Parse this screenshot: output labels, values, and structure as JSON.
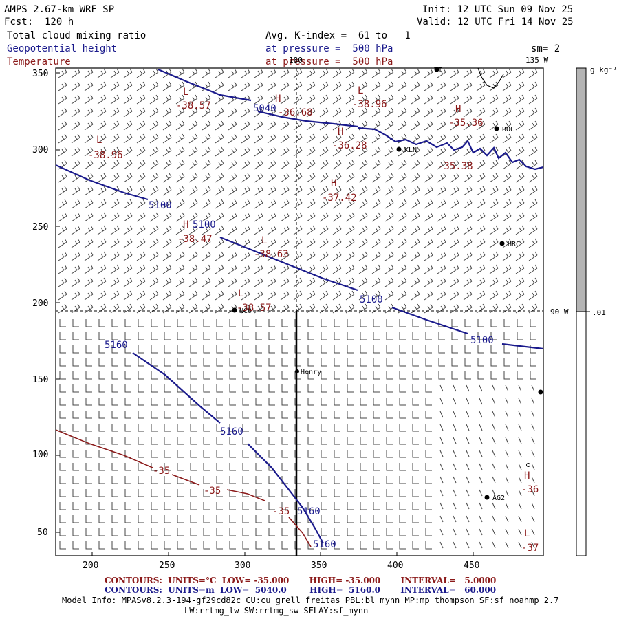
{
  "header": {
    "model": "AMPS 2.67-km WRF SP",
    "forecast": "Fcst:  120 h",
    "init": "Init: 12 UTC Sun 09 Nov 25",
    "valid": "Valid: 12 UTC Fri 14 Nov 25",
    "field1": "Total cloud mixing ratio",
    "field2": "Geopotential height",
    "field3": "Temperature",
    "avg": "Avg. K-index =  61 to   1",
    "pressure1": "at pressure =  500 hPa",
    "pressure2": "at pressure =  500 hPa",
    "sm": "sm= 2"
  },
  "map": {
    "x_ticks": [
      "200",
      "250",
      "300",
      "350",
      "400",
      "450"
    ],
    "y_ticks": [
      "50",
      "100",
      "150",
      "200",
      "250",
      "300",
      "350"
    ],
    "meridian_top": "180",
    "meridian_135": "135 W",
    "meridian_90": "90 W",
    "stations": [
      {
        "name": "LVT"
      },
      {
        "name": "ROC"
      },
      {
        "name": "KLN"
      },
      {
        "name": "HRC"
      },
      {
        "name": "NCO"
      },
      {
        "name": "Henry"
      },
      {
        "name": "AG2"
      }
    ],
    "height_labels": [
      "5040",
      "5100",
      "5100",
      "5100",
      "5100",
      "5160",
      "5160",
      "5160",
      "5160"
    ],
    "temp_labels": [
      "-35",
      "-35",
      "-35"
    ],
    "extrema": [
      {
        "type": "L",
        "value": "-38.57"
      },
      {
        "type": "H",
        "value": "-36.68"
      },
      {
        "type": "L",
        "value": "-38.96"
      },
      {
        "type": "H",
        "value": "-35.36"
      },
      {
        "type": "H",
        "value": "-36.28"
      },
      {
        "type": "L",
        "value": "-38.96"
      },
      {
        "type": "H",
        "value": "-37.42"
      },
      {
        "type": "H",
        "value": "-38.47"
      },
      {
        "type": "L",
        "value": "-38.63"
      },
      {
        "type": "L",
        "value": "-38.57"
      },
      {
        "type": "H",
        "value": "-36"
      },
      {
        "type": "L",
        "value": "-37"
      }
    ],
    "extra_value": "-35.38"
  },
  "colorbar": {
    "unit": "g kg⁻¹",
    "label": ".01",
    "color": "#b4b4b4"
  },
  "footer": {
    "temp_contours": "CONTOURS:  UNITS=°C  LOW= -35.000       HIGH= -35.000       INTERVAL=   5.0000",
    "height_contours": "CONTOURS:  UNITS=m  LOW=  5040.0        HIGH=  5160.0       INTERVAL=   60.000",
    "model_info": "Model Info: MPASv8.2.3-194-gf29cd82c CU:cu_grell_freitas PBL:bl_mynn MP:mp_thompson SF:sf_noahmp 2.7",
    "model_info2": "LW:rrtmg_lw SW:rrtmg_sw SFLAY:sf_mynn"
  },
  "colors": {
    "height": "#1a1a8c",
    "temperature": "#8b1a1a",
    "barb": "#444444"
  }
}
